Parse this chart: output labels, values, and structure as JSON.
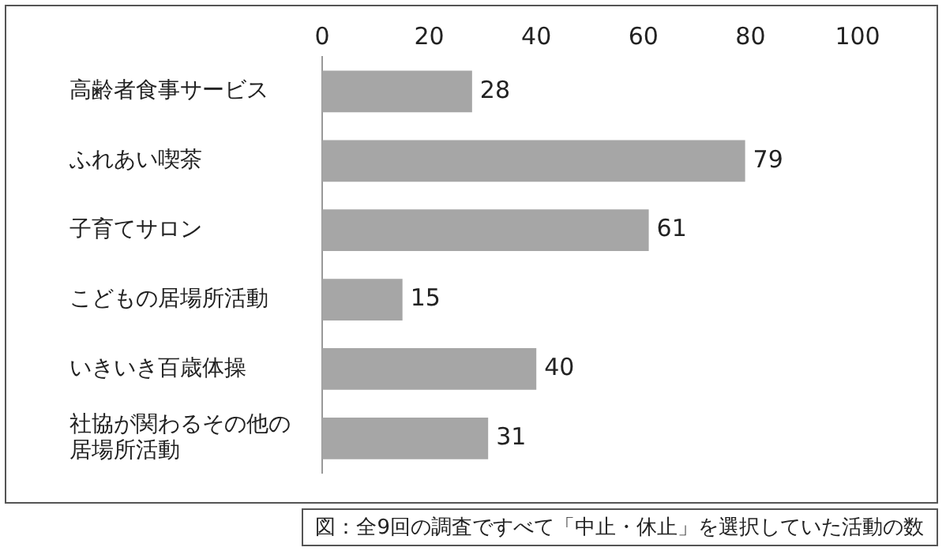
{
  "chart_data": {
    "type": "bar",
    "orientation": "horizontal",
    "categories": [
      "高齢者食事サービス",
      "ふれあい喫茶",
      "子育てサロン",
      "こどもの居場所活動",
      "いきいき百歳体操",
      "社協が関わるその他の居場所活動"
    ],
    "values": [
      28,
      79,
      61,
      15,
      40,
      31
    ],
    "color": "#a6a6a6",
    "xlim": [
      0,
      100
    ],
    "xticks": [
      0,
      20,
      40,
      60,
      80,
      100
    ],
    "grid": false,
    "data_labels": true,
    "annotations": [
      "図：全9回の調査ですべて「中止・休止」を選択していた活動の数"
    ]
  }
}
